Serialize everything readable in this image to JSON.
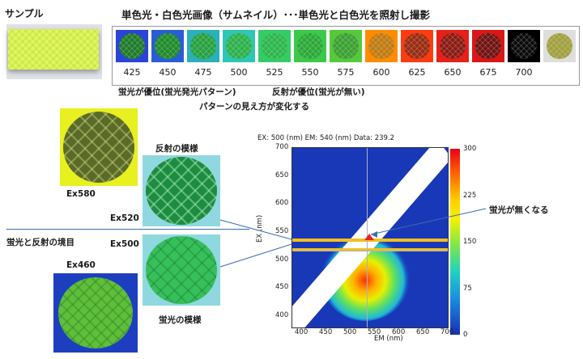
{
  "sample_label": "サンプル",
  "title": "単色光・白色光画像（サムネイル）･･･単色光と白色光を照射し撮影",
  "wavelengths": [
    "425",
    "450",
    "475",
    "500",
    "525",
    "550",
    "575",
    "600",
    "625",
    "650",
    "675",
    "700"
  ],
  "thumb_colors": {
    "frames": [
      "#2b43d8",
      "#2a5dd4",
      "#2ab0b8",
      "#2ec6b4",
      "#35cc68",
      "#3cc84a",
      "#56c83c",
      "#ff8c00",
      "#ff3c10",
      "#e8201a",
      "#d81818",
      "#000000",
      "#dedede"
    ],
    "discs": [
      "#1e7a2a",
      "#1e8a2a",
      "#25a040",
      "#2cb04a",
      "#2bb64c",
      "#2aa836",
      "#3aa030",
      "#c07a10",
      "#9a2a10",
      "#8a1a10",
      "#701210",
      "#0a0a0a",
      "#a0a040"
    ]
  },
  "annotations": {
    "fluorescence_dominant": "蛍光が優位(蛍光発光パターン)",
    "reflection_dominant": "反射が優位(蛍光が無い)",
    "pattern_changes": "パターンの見え方が変化する",
    "reflection_pattern": "反射の模様",
    "fluorescence_pattern": "蛍光の模様",
    "boundary": "蛍光と反射の境目",
    "no_fluorescence": "蛍光が無くなる"
  },
  "ex_labels": {
    "ex580": "Ex580",
    "ex520": "Ex520",
    "ex500": "Ex500",
    "ex460": "Ex460"
  },
  "chart_data": {
    "type": "heatmap",
    "header": "EX: 500 (nm) EM: 540 (nm) Data: 239.2",
    "xlabel": "EM (nm)",
    "ylabel": "EX (nm)",
    "xlim": [
      380,
      700
    ],
    "ylim": [
      380,
      700
    ],
    "x_ticks": [
      "400",
      "450",
      "500",
      "550",
      "600",
      "650",
      "700"
    ],
    "y_ticks": [
      "400",
      "450",
      "500",
      "550",
      "600",
      "650",
      "700"
    ],
    "colorbar_ticks": [
      "300",
      "225",
      "150",
      "75",
      "0"
    ],
    "colorbar_range": [
      0,
      300
    ],
    "cursor": {
      "ex": 500,
      "em": 540,
      "value": 239.2
    },
    "highlight_ex": [
      500,
      520
    ],
    "peak": {
      "ex": 460,
      "em": 530
    }
  }
}
